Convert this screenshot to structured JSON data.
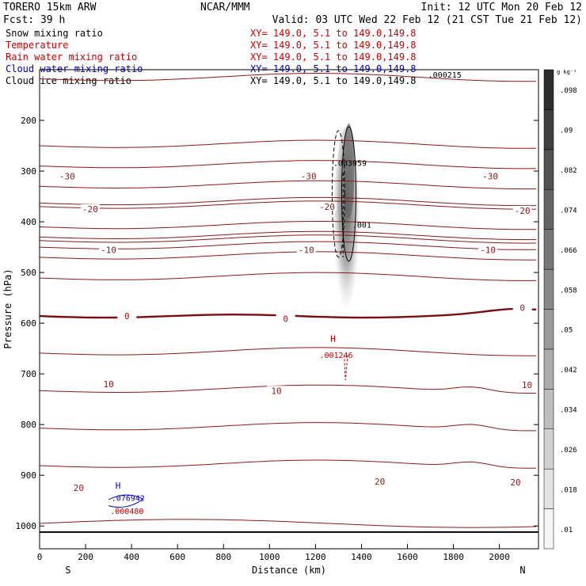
{
  "header": {
    "model": "TORERO  15km ARW",
    "org": "NCAR/MMM",
    "init": "Init: 12 UTC Mon 20 Feb 12",
    "fcst": "Fcst:   39 h",
    "valid": "Valid: 03 UTC Wed 22 Feb 12 (21 CST Tue 21 Feb 12)"
  },
  "fields": [
    {
      "name": "Snow mixing ratio",
      "xy": "XY= 149.0,  5.1 to 149.0,149.8",
      "color": "#000000",
      "xycolor": "#cc0000"
    },
    {
      "name": "Temperature",
      "xy": "XY= 149.0,  5.1 to 149.0,149.8",
      "color": "#cc0000",
      "xycolor": "#cc0000"
    },
    {
      "name": "Rain water mixing ratio",
      "xy": "XY= 149.0,  5.1 to 149.0,149.8",
      "color": "#cc0000",
      "xycolor": "#cc0000"
    },
    {
      "name": "Cloud water mixing ratio",
      "xy": "XY= 149.0,  5.1 to 149.0,149.8",
      "color": "#0000cc",
      "xycolor": "#0000cc"
    },
    {
      "name": "Cloud ice mixing ratio",
      "xy": "XY= 149.0,  5.1 to 149.0,149.8",
      "color": "#000000",
      "xycolor": "#000000"
    }
  ],
  "colors": {
    "contour": "#8b1a1a",
    "freezing": "#7a0f0f",
    "rain": "#cc0000",
    "cloudwater": "#0000cc"
  },
  "chart_data": {
    "type": "cross-section",
    "xlabel": "Distance (km)",
    "ylabel": "Pressure (hPa)",
    "xlim": [
      0,
      2170
    ],
    "ylim": [
      1045,
      100
    ],
    "xticks": [
      0,
      200,
      400,
      600,
      800,
      1000,
      1200,
      1400,
      1600,
      1800,
      2000
    ],
    "yticks": [
      200,
      300,
      400,
      500,
      600,
      700,
      800,
      900,
      1000
    ],
    "left_end": "S",
    "right_end": "N",
    "surface_pressure": 1012,
    "isotherm_levels_C": [
      -60,
      -55,
      -50,
      -45,
      -40,
      -35,
      -30,
      -25,
      -20,
      -15,
      -10,
      -5,
      0,
      5,
      10,
      15,
      20,
      25
    ],
    "isotherm_labels": [
      {
        "text": "-30",
        "x": 120,
        "p": 310
      },
      {
        "text": "-30",
        "x": 1170,
        "p": 310
      },
      {
        "text": "-30",
        "x": 1960,
        "p": 310
      },
      {
        "text": "-20",
        "x": 220,
        "p": 375
      },
      {
        "text": "-20",
        "x": 1250,
        "p": 370
      },
      {
        "text": "-20",
        "x": 2100,
        "p": 378
      },
      {
        "text": "-10",
        "x": 300,
        "p": 455
      },
      {
        "text": "-10",
        "x": 1160,
        "p": 455
      },
      {
        "text": "-10",
        "x": 1950,
        "p": 455
      },
      {
        "text": "0",
        "x": 380,
        "p": 586
      },
      {
        "text": "0",
        "x": 1070,
        "p": 591
      },
      {
        "text": "0",
        "x": 2100,
        "p": 569
      },
      {
        "text": "10",
        "x": 300,
        "p": 720
      },
      {
        "text": "10",
        "x": 1030,
        "p": 733
      },
      {
        "text": "10",
        "x": 2120,
        "p": 722
      },
      {
        "text": "20",
        "x": 170,
        "p": 925
      },
      {
        "text": "20",
        "x": 1480,
        "p": 912
      },
      {
        "text": "20",
        "x": 2070,
        "p": 914
      }
    ],
    "snow_max_label": ".003059",
    "cloud_ice_label_1": ".001",
    "cloud_ice_label_2": ".000215",
    "rain_max_label": ".001246",
    "rain_H": "H",
    "cloud_water_H": "H",
    "cloud_water_max_label": ".076942",
    "rain_low_label": ".000480",
    "colorbar": {
      "units": "g kg⁻¹",
      "levels": [
        0.01,
        0.018,
        0.026,
        0.034,
        0.042,
        0.05,
        0.058,
        0.066,
        0.074,
        0.082,
        0.09,
        0.098
      ],
      "labels": [
        ".01",
        ".018",
        ".026",
        ".034",
        ".042",
        ".05",
        ".058",
        ".066",
        ".074",
        ".082",
        ".09",
        ".098"
      ]
    }
  }
}
